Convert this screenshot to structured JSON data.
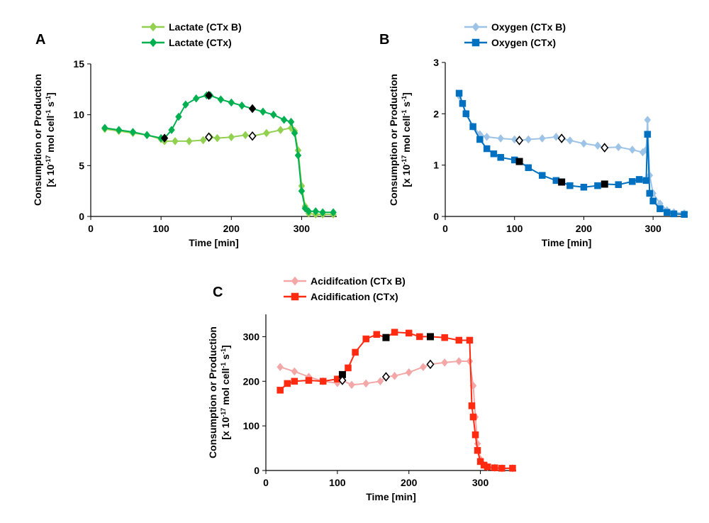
{
  "chart_data": [
    {
      "panel": "A",
      "type": "scatter",
      "xlabel": "Time [min]",
      "ylabel_line1": "Consumption or Production",
      "ylabel_line2": "[x 10-17 mol cell-1 s-1]",
      "xlim": [
        0,
        350
      ],
      "ylim": [
        0,
        15
      ],
      "xticks": [
        0,
        100,
        200,
        300
      ],
      "yticks": [
        0,
        5,
        10,
        15
      ],
      "series": [
        {
          "name": "Lactate (CTx B)",
          "color": "#92d050",
          "marker": "diamond",
          "x": [
            20,
            40,
            60,
            80,
            100,
            105,
            120,
            140,
            160,
            170,
            180,
            200,
            220,
            230,
            250,
            270,
            285,
            290,
            295,
            300,
            305,
            310,
            320,
            330,
            345
          ],
          "y": [
            8.6,
            8.4,
            8.2,
            8.0,
            7.6,
            7.4,
            7.4,
            7.4,
            7.5,
            7.8,
            7.7,
            7.8,
            8.0,
            7.9,
            8.2,
            8.5,
            8.7,
            8.4,
            6.5,
            3.0,
            1.0,
            0.3,
            0.2,
            0.2,
            0.2
          ]
        },
        {
          "name": "Lactate (CTx)",
          "color": "#00b050",
          "marker": "diamond",
          "x": [
            20,
            40,
            60,
            80,
            100,
            105,
            115,
            125,
            135,
            150,
            165,
            170,
            185,
            200,
            215,
            230,
            245,
            260,
            275,
            285,
            290,
            295,
            300,
            305,
            310,
            320,
            330,
            345
          ],
          "y": [
            8.7,
            8.5,
            8.3,
            8.0,
            7.7,
            7.7,
            8.5,
            9.8,
            11.0,
            11.6,
            11.9,
            11.9,
            11.5,
            11.2,
            10.9,
            10.6,
            10.3,
            10.0,
            9.5,
            9.3,
            8.2,
            6.0,
            2.5,
            0.8,
            0.5,
            0.5,
            0.4,
            0.4
          ]
        }
      ],
      "highlight_markers": [
        {
          "series": "Lactate (CTx)",
          "style": "filled",
          "x": [
            105,
            168,
            230
          ],
          "y": [
            7.7,
            11.9,
            10.6
          ]
        },
        {
          "series": "Lactate (CTx B)",
          "style": "open",
          "x": [
            168,
            230
          ],
          "y": [
            7.8,
            7.9
          ]
        }
      ]
    },
    {
      "panel": "B",
      "type": "scatter",
      "xlabel": "Time [min]",
      "ylabel_line1": "Consumption or Production",
      "ylabel_line2": "[x 10-17 mol cell-1 s-1]",
      "xlim": [
        0,
        350
      ],
      "ylim": [
        0,
        3
      ],
      "xticks": [
        0,
        100,
        200,
        300
      ],
      "yticks": [
        0,
        1,
        2,
        3
      ],
      "series": [
        {
          "name": "Oxygen (CTx B)",
          "color": "#9dc3e6",
          "marker": "diamond",
          "x": [
            20,
            30,
            40,
            50,
            60,
            80,
            100,
            107,
            120,
            140,
            160,
            168,
            180,
            200,
            220,
            230,
            250,
            270,
            285,
            290,
            292,
            295,
            300,
            310,
            320,
            330,
            345
          ],
          "y": [
            2.35,
            2.0,
            1.75,
            1.6,
            1.55,
            1.52,
            1.5,
            1.48,
            1.5,
            1.52,
            1.55,
            1.52,
            1.48,
            1.42,
            1.38,
            1.34,
            1.35,
            1.3,
            1.25,
            1.3,
            1.88,
            0.8,
            0.45,
            0.25,
            0.12,
            0.08,
            0.06
          ]
        },
        {
          "name": "Oxygen (CTx)",
          "color": "#0070c0",
          "marker": "square",
          "x": [
            20,
            25,
            30,
            40,
            50,
            60,
            70,
            80,
            100,
            107,
            120,
            140,
            160,
            168,
            180,
            200,
            220,
            230,
            250,
            270,
            280,
            290,
            292,
            295,
            300,
            310,
            320,
            330,
            345
          ],
          "y": [
            2.4,
            2.2,
            2.0,
            1.75,
            1.5,
            1.32,
            1.22,
            1.15,
            1.1,
            1.07,
            0.95,
            0.8,
            0.7,
            0.67,
            0.6,
            0.57,
            0.6,
            0.63,
            0.62,
            0.68,
            0.72,
            0.7,
            1.6,
            0.45,
            0.3,
            0.15,
            0.08,
            0.05,
            0.04
          ]
        }
      ],
      "highlight_markers": [
        {
          "series": "Oxygen (CTx)",
          "style": "filled",
          "x": [
            107,
            168,
            230
          ],
          "y": [
            1.07,
            0.67,
            0.63
          ]
        },
        {
          "series": "Oxygen (CTx B)",
          "style": "open",
          "x": [
            107,
            168,
            230
          ],
          "y": [
            1.48,
            1.52,
            1.34
          ]
        }
      ]
    },
    {
      "panel": "C",
      "type": "scatter",
      "xlabel": "Time [min]",
      "ylabel_line1": "Consumption or Production",
      "ylabel_line2": "[x 10-17 mol cell-1 s-1]",
      "xlim": [
        0,
        350
      ],
      "ylim": [
        0,
        350
      ],
      "xticks": [
        0,
        100,
        200,
        300
      ],
      "yticks": [
        0,
        100,
        200,
        300
      ],
      "series": [
        {
          "name": "Acidifcation (CTx B)",
          "color": "#f4a7a7",
          "marker": "diamond",
          "x": [
            20,
            40,
            60,
            80,
            100,
            107,
            120,
            140,
            160,
            168,
            180,
            200,
            220,
            230,
            250,
            270,
            285,
            290,
            293,
            296,
            300,
            305,
            310,
            320,
            330,
            345
          ],
          "y": [
            232,
            222,
            210,
            200,
            196,
            202,
            192,
            195,
            200,
            210,
            212,
            220,
            232,
            238,
            242,
            245,
            245,
            190,
            120,
            60,
            25,
            12,
            8,
            6,
            5,
            5
          ]
        },
        {
          "name": "Acidification (CTx)",
          "color": "#ff2a10",
          "marker": "square",
          "x": [
            20,
            30,
            40,
            60,
            80,
            100,
            107,
            115,
            125,
            140,
            155,
            168,
            180,
            200,
            215,
            230,
            250,
            270,
            285,
            288,
            290,
            293,
            296,
            300,
            305,
            310,
            320,
            330,
            345
          ],
          "y": [
            180,
            195,
            200,
            202,
            200,
            205,
            215,
            230,
            265,
            295,
            305,
            298,
            310,
            308,
            300,
            300,
            298,
            292,
            292,
            145,
            120,
            80,
            45,
            20,
            12,
            8,
            6,
            5,
            5
          ]
        }
      ],
      "highlight_markers": [
        {
          "series": "Acidification (CTx)",
          "style": "filled",
          "x": [
            107,
            168,
            230
          ],
          "y": [
            215,
            298,
            300
          ]
        },
        {
          "series": "Acidifcation (CTx B)",
          "style": "open",
          "x": [
            107,
            168,
            230
          ],
          "y": [
            202,
            210,
            238
          ]
        }
      ]
    }
  ]
}
